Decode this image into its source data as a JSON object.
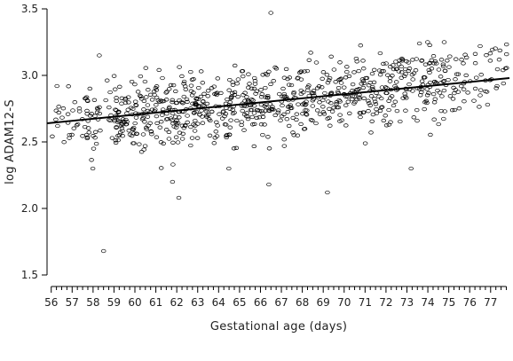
{
  "chart_data": {
    "type": "scatter",
    "title": "",
    "xlabel": "Gestational age (days)",
    "ylabel": "log ADAM12-S",
    "xlim": [
      55.8,
      77.9
    ],
    "ylim": [
      1.5,
      3.5
    ],
    "x_ticks": [
      56,
      57,
      58,
      59,
      60,
      61,
      62,
      63,
      64,
      65,
      66,
      67,
      68,
      69,
      70,
      71,
      72,
      73,
      74,
      75,
      76,
      77
    ],
    "y_ticks": [
      "1.5",
      "2.0",
      "2.5",
      "3.0",
      "3.5"
    ],
    "grid": false,
    "legend": "none",
    "trend_line": {
      "x": [
        55.8,
        77.9
      ],
      "y": [
        2.64,
        2.98
      ]
    },
    "point_count": 900,
    "notable_points": [
      {
        "x": 58.5,
        "y": 1.68
      },
      {
        "x": 66.5,
        "y": 3.47
      },
      {
        "x": 69.2,
        "y": 2.12
      },
      {
        "x": 62.1,
        "y": 2.08
      },
      {
        "x": 61.8,
        "y": 2.2
      },
      {
        "x": 66.4,
        "y": 2.18
      },
      {
        "x": 73.2,
        "y": 2.3
      },
      {
        "x": 73.6,
        "y": 3.24
      },
      {
        "x": 76.5,
        "y": 3.22
      },
      {
        "x": 58.3,
        "y": 3.15
      }
    ]
  }
}
